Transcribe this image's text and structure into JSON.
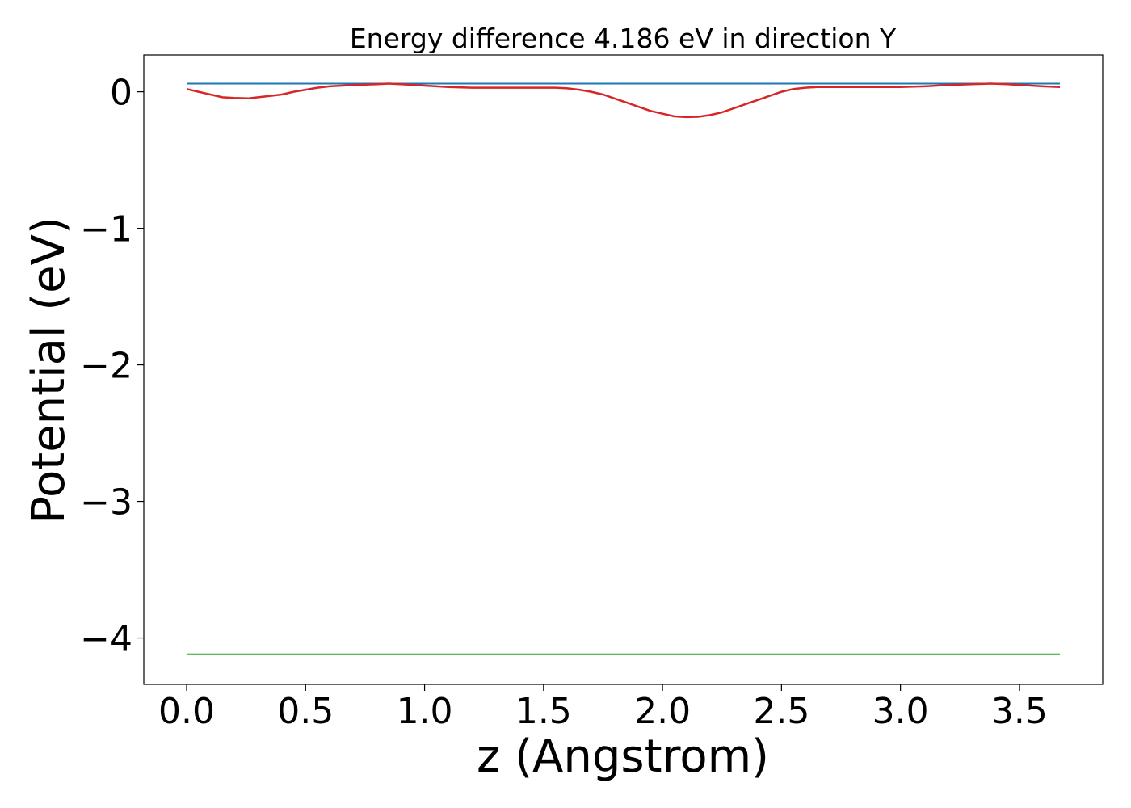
{
  "chart_data": {
    "type": "line",
    "title": "Energy difference 4.186 eV in direction Y",
    "xlabel": "z (Angstrom)",
    "ylabel": "Potential (eV)",
    "xlim": [
      -0.18,
      3.85
    ],
    "ylim": [
      -4.34,
      0.27
    ],
    "xticks": [
      0.0,
      0.5,
      1.0,
      1.5,
      2.0,
      2.5,
      3.0,
      3.5
    ],
    "xtick_labels": [
      "0.0",
      "0.5",
      "1.0",
      "1.5",
      "2.0",
      "2.5",
      "3.0",
      "3.5"
    ],
    "yticks": [
      0,
      -1,
      -2,
      -3,
      -4
    ],
    "ytick_labels": [
      "0",
      "−1",
      "−2",
      "−3",
      "−4"
    ],
    "grid": false,
    "series": [
      {
        "color": "#1f77b4",
        "x": [
          0.0,
          3.67
        ],
        "y": [
          0.06,
          0.06
        ]
      },
      {
        "color": "#2ca02c",
        "x": [
          0.0,
          3.67
        ],
        "y": [
          -4.12,
          -4.12
        ]
      },
      {
        "color": "#d62728",
        "x": [
          0.0,
          0.05,
          0.1,
          0.15,
          0.2,
          0.26,
          0.3,
          0.35,
          0.4,
          0.45,
          0.5,
          0.55,
          0.6,
          0.7,
          0.8,
          0.85,
          0.9,
          1.0,
          1.1,
          1.2,
          1.3,
          1.4,
          1.5,
          1.55,
          1.6,
          1.65,
          1.7,
          1.75,
          1.8,
          1.85,
          1.9,
          1.95,
          2.0,
          2.05,
          2.1,
          2.15,
          2.2,
          2.25,
          2.3,
          2.35,
          2.4,
          2.45,
          2.5,
          2.55,
          2.6,
          2.65,
          2.7,
          2.8,
          2.9,
          3.0,
          3.1,
          3.2,
          3.3,
          3.38,
          3.45,
          3.5,
          3.55,
          3.6,
          3.67
        ],
        "y": [
          0.02,
          0.0,
          -0.02,
          -0.04,
          -0.045,
          -0.048,
          -0.04,
          -0.03,
          -0.02,
          0.0,
          0.015,
          0.03,
          0.04,
          0.05,
          0.055,
          0.06,
          0.055,
          0.045,
          0.035,
          0.03,
          0.03,
          0.03,
          0.03,
          0.03,
          0.025,
          0.015,
          0.0,
          -0.02,
          -0.05,
          -0.08,
          -0.11,
          -0.14,
          -0.16,
          -0.18,
          -0.185,
          -0.183,
          -0.17,
          -0.15,
          -0.12,
          -0.09,
          -0.06,
          -0.03,
          0.0,
          0.02,
          0.03,
          0.035,
          0.035,
          0.035,
          0.035,
          0.035,
          0.04,
          0.05,
          0.055,
          0.06,
          0.055,
          0.05,
          0.045,
          0.04,
          0.035
        ]
      }
    ]
  }
}
